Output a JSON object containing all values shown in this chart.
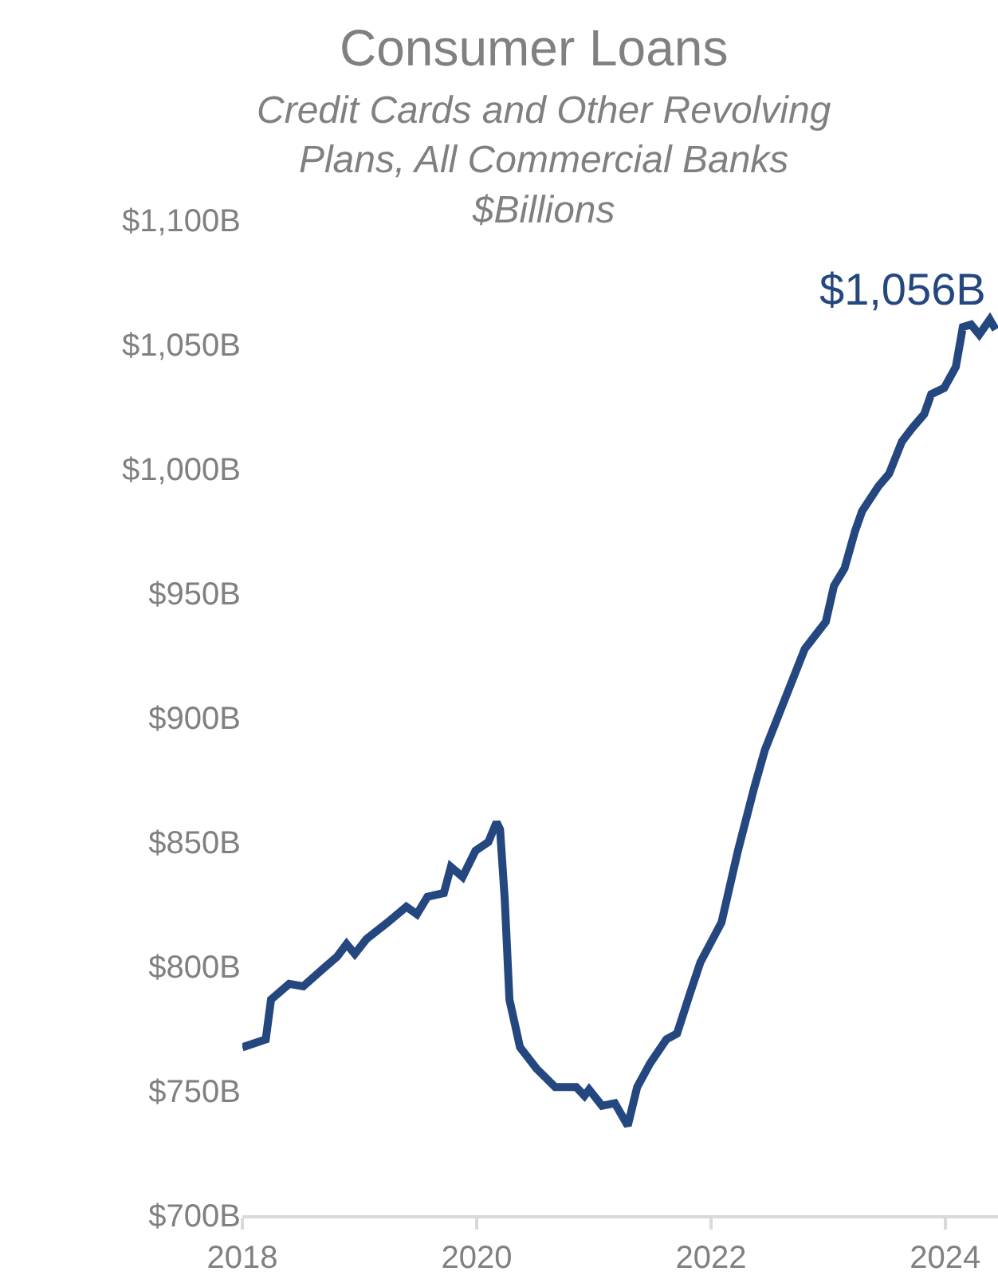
{
  "chart_data": {
    "type": "line",
    "title": "Consumer Loans",
    "subtitle": "Credit Cards and Other Revolving\nPlans, All Commercial Banks\n$Billions",
    "x": [
      2018.0,
      2018.2,
      2018.245,
      2018.4,
      2018.52,
      2018.675,
      2018.81,
      2018.89,
      2018.96,
      2019.06,
      2019.24,
      2019.4,
      2019.49,
      2019.58,
      2019.72,
      2019.78,
      2019.88,
      2019.99,
      2020.1,
      2020.17,
      2020.2,
      2020.24,
      2020.28,
      2020.37,
      2020.51,
      2020.67,
      2020.85,
      2020.92,
      2020.96,
      2021.07,
      2021.18,
      2021.29,
      2021.37,
      2021.48,
      2021.62,
      2021.71,
      2021.82,
      2021.91,
      2022.09,
      2022.23,
      2022.37,
      2022.46,
      2022.64,
      2022.8,
      2022.98,
      2023.05,
      2023.14,
      2023.23,
      2023.29,
      2023.43,
      2023.52,
      2023.63,
      2023.72,
      2023.82,
      2023.88,
      2023.99,
      2024.09,
      2024.15,
      2024.22,
      2024.29,
      2024.38,
      2024.43
    ],
    "series": [
      {
        "color": "#24477f",
        "values": [
          767.5,
          770.7,
          786.7,
          793,
          792,
          798.5,
          804,
          809,
          805,
          811,
          817.7,
          824,
          821,
          828,
          829.5,
          840,
          836,
          846.5,
          850,
          858,
          855,
          827,
          786.7,
          767.5,
          759,
          751.5,
          751.5,
          748,
          750.5,
          744,
          745,
          736,
          751.5,
          761,
          770.7,
          773,
          789,
          801.7,
          817.7,
          846.5,
          872,
          887,
          908.5,
          927.6,
          938.5,
          953,
          960,
          975,
          983,
          993,
          998,
          1011,
          1016.5,
          1022,
          1030,
          1032.5,
          1041,
          1057,
          1058,
          1054,
          1060,
          1056
        ]
      }
    ],
    "annotations": [
      {
        "text": "$1,056B",
        "x": 2024.43,
        "y": 1056
      }
    ],
    "xlim": [
      2018,
      2024.45
    ],
    "xticks": [
      2018,
      2020,
      2022,
      2024
    ],
    "ylim": [
      700,
      1100
    ],
    "yticks": [
      {
        "value": 700,
        "label": "$700B"
      },
      {
        "value": 750,
        "label": "$750B"
      },
      {
        "value": 800,
        "label": "$800B"
      },
      {
        "value": 850,
        "label": "$850B"
      },
      {
        "value": 900,
        "label": "$900B"
      },
      {
        "value": 950,
        "label": "$950B"
      },
      {
        "value": 1000,
        "label": "$1,000B"
      },
      {
        "value": 1050,
        "label": "$1,050B"
      },
      {
        "value": 1100,
        "label": "$1,100B"
      }
    ],
    "marker": "none",
    "line_style": "solid"
  }
}
